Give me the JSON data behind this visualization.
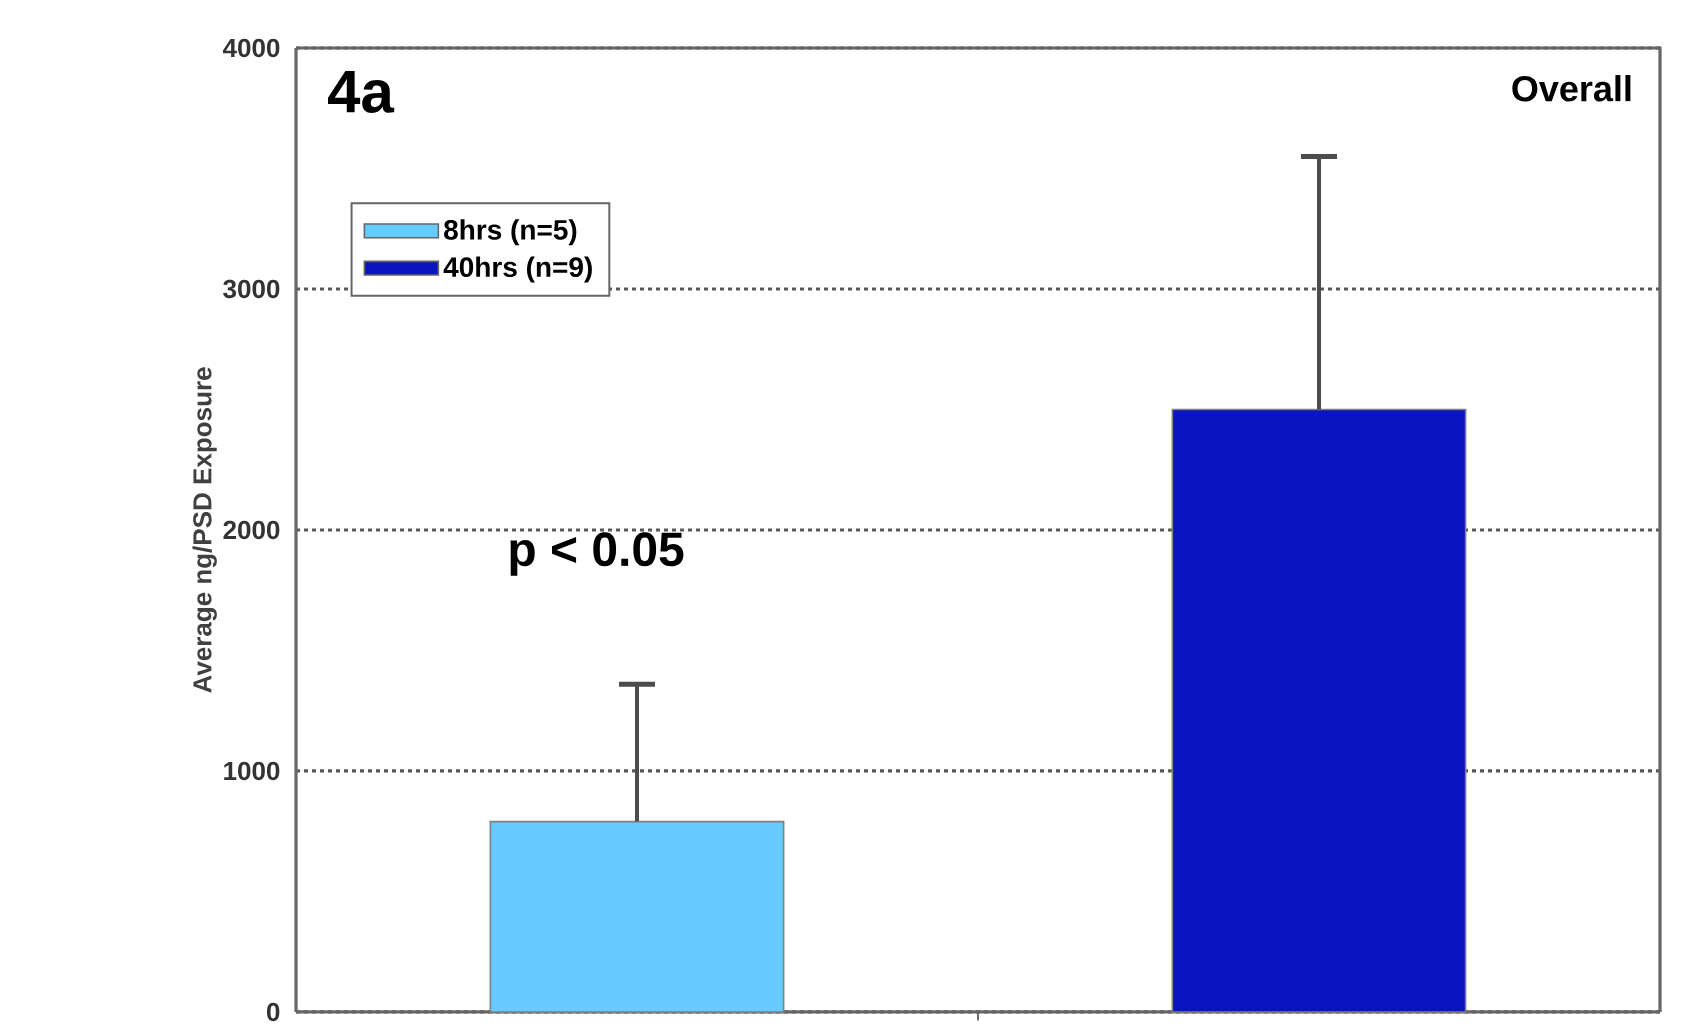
{
  "chart_data": {
    "type": "bar",
    "title": "4a",
    "subtitle": "Overall",
    "ylabel": "Average ng/PSD Exposure",
    "categories": [
      null,
      null
    ],
    "series": [
      {
        "name": "8hrs (n=5)",
        "color": "#66ccff",
        "values": [
          790,
          null
        ],
        "errors": [
          [
            790,
            1360
          ],
          null
        ]
      },
      {
        "name": "40hrs (n=9)",
        "color": "#0a14c0",
        "values": [
          null,
          2500
        ],
        "errors": [
          null,
          [
            2500,
            3550
          ]
        ]
      }
    ],
    "annotations": [
      "p < 0.05"
    ],
    "ylim": [
      0,
      4000
    ],
    "yticks": [
      0,
      1000,
      2000,
      3000,
      4000
    ],
    "grid": "y",
    "legend": "top left"
  }
}
